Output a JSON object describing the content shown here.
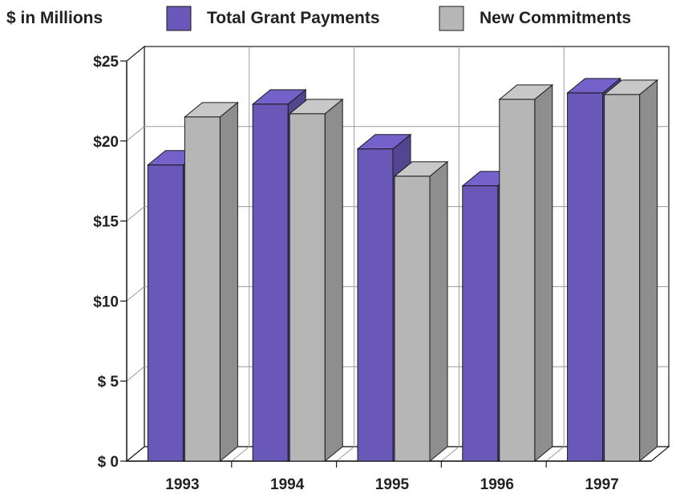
{
  "unit_label": "$ in Millions",
  "colors": {
    "total_grant_payments": "#6a58b8",
    "new_commitments": "#b6b6b6",
    "outline": "#1a1a1a",
    "grid": "#9a9a9a"
  },
  "chart_data": {
    "type": "bar",
    "title": "",
    "xlabel": "",
    "ylabel": "",
    "categories": [
      "1993",
      "1994",
      "1995",
      "1996",
      "1997"
    ],
    "series": [
      {
        "name": "Total Grant Payments",
        "values": [
          18.5,
          22.3,
          19.5,
          17.2,
          23.0
        ]
      },
      {
        "name": "New Commitments",
        "values": [
          21.5,
          21.7,
          17.8,
          22.6,
          22.9
        ]
      }
    ],
    "ylim": [
      0,
      25
    ],
    "yticks": [
      0,
      5,
      10,
      15,
      20,
      25
    ],
    "ytick_labels": [
      "$ 0",
      "$ 5",
      "$10",
      "$15",
      "$20",
      "$25"
    ],
    "grid": true,
    "legend_position": "top",
    "three_d": true
  }
}
